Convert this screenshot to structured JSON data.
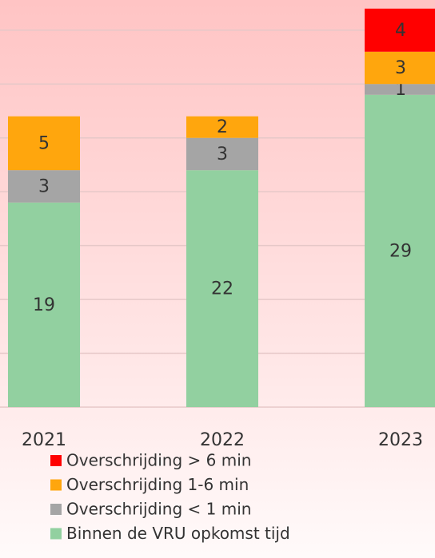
{
  "chart_data": {
    "type": "bar",
    "stacked": true,
    "categories": [
      "2021",
      "2022",
      "2023"
    ],
    "series": [
      {
        "name": "Binnen de VRU opkomst tijd",
        "color": "#92d0a0",
        "values": [
          19,
          22,
          29
        ]
      },
      {
        "name": "Overschrijding < 1 min",
        "color": "#a5a5a5",
        "values": [
          3,
          3,
          1
        ]
      },
      {
        "name": "Overschrijding 1-6 min",
        "color": "#ffa60d",
        "values": [
          5,
          2,
          3
        ]
      },
      {
        "name": "Overschrijding > 6 min",
        "color": "#ff0000",
        "values": [
          null,
          null,
          4
        ]
      }
    ],
    "ylim": [
      0,
      37.8
    ],
    "yticks": [
      0,
      5,
      10,
      15,
      20,
      25,
      30,
      35
    ],
    "grid": true
  }
}
